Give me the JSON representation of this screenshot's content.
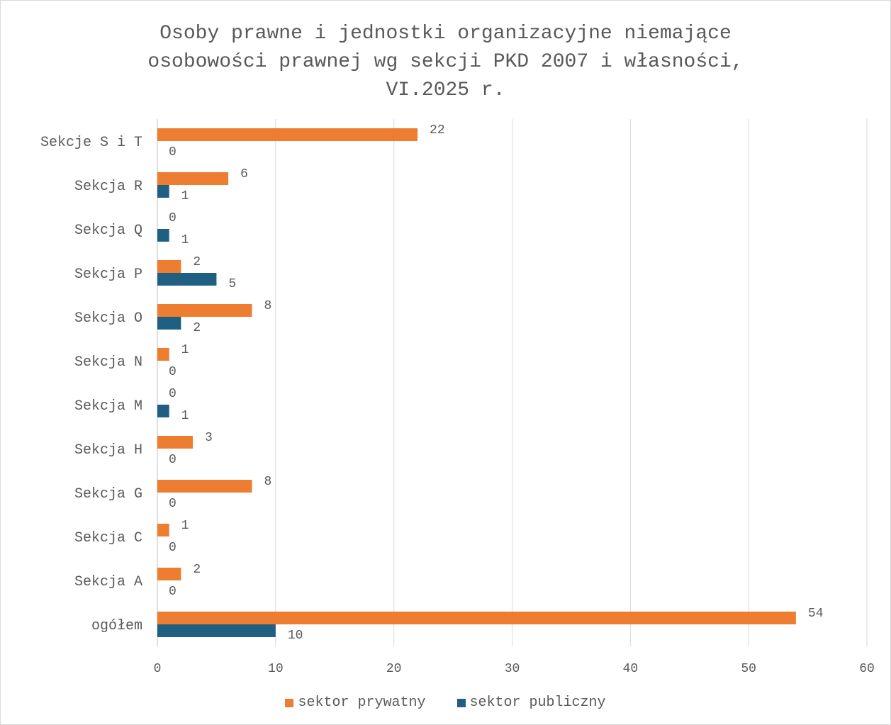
{
  "colors": {
    "prywatny": "#ED7D31",
    "publiczny": "#1F5F82",
    "grid": "#d9d9d9",
    "text": "#595959"
  },
  "chart_data": {
    "type": "bar",
    "orientation": "horizontal",
    "title": "Osoby prawne i jednostki organizacyjne niemające\nosobowości prawnej wg sekcji PKD 2007 i własności,\nVI.2025 r.",
    "categories": [
      "Sekcje S i T",
      "Sekcja R",
      "Sekcja Q",
      "Sekcja P",
      "Sekcja O",
      "Sekcja N",
      "Sekcja M",
      "Sekcja H",
      "Sekcja G",
      "Sekcja C",
      "Sekcja A",
      "ogółem"
    ],
    "series": [
      {
        "name": "sektor prywatny",
        "values": [
          22,
          6,
          0,
          2,
          8,
          1,
          0,
          3,
          8,
          1,
          2,
          54
        ]
      },
      {
        "name": "sektor publiczny",
        "values": [
          0,
          1,
          1,
          5,
          2,
          0,
          1,
          0,
          0,
          0,
          0,
          10
        ]
      }
    ],
    "xlim": [
      0,
      60
    ],
    "xticks": [
      0,
      10,
      20,
      30,
      40,
      50,
      60
    ],
    "grid": true,
    "legend": "bottom"
  }
}
